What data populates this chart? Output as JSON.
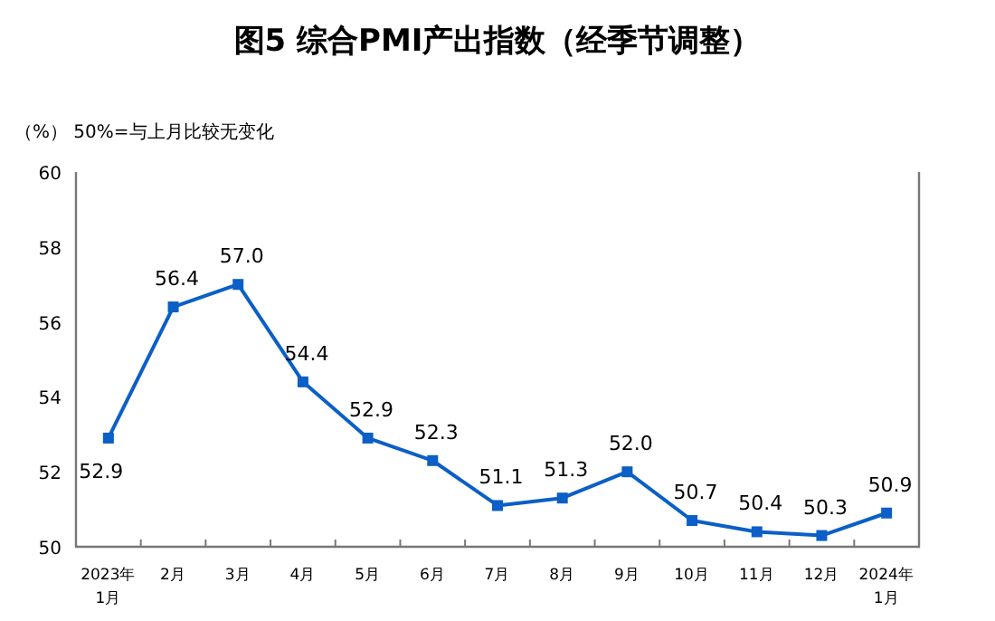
{
  "chart_data": {
    "type": "line",
    "title": "图5  综合PMI产出指数（经季节调整）",
    "annotations": [
      "（%）  50%=与上月比较无变化"
    ],
    "categories": [
      "2023年\n1月",
      "2月",
      "3月",
      "4月",
      "5月",
      "6月",
      "7月",
      "8月",
      "9月",
      "10月",
      "11月",
      "12月",
      "2024年\n1月"
    ],
    "series": [
      {
        "color": "#0b5fc6",
        "values": [
          52.9,
          56.4,
          57.0,
          54.4,
          52.9,
          52.3,
          51.1,
          51.3,
          52.0,
          50.7,
          50.4,
          50.3,
          50.9
        ],
        "value_labels": [
          "52.9",
          "56.4",
          "57.0",
          "54.4",
          "52.9",
          "52.3",
          "51.1",
          "51.3",
          "52.0",
          "50.7",
          "50.4",
          "50.3",
          "50.9"
        ]
      }
    ],
    "ylim": [
      50,
      60
    ],
    "yticks": [
      50,
      52,
      54,
      56,
      58,
      60
    ],
    "marker": "square",
    "grid": false
  }
}
